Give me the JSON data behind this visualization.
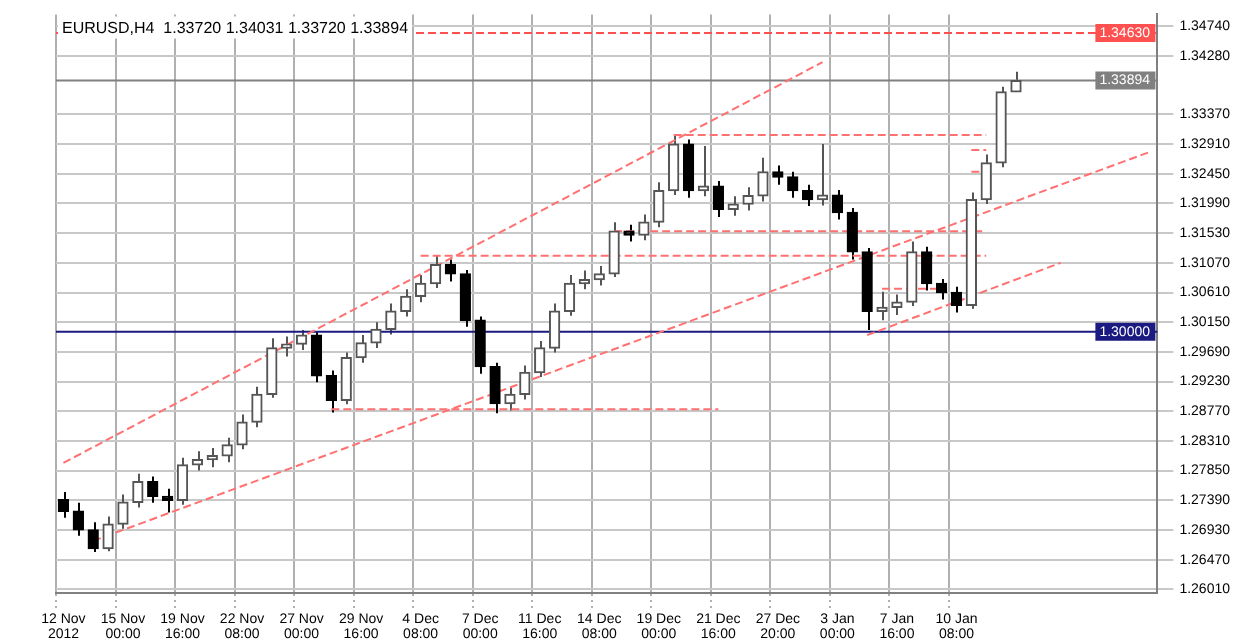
{
  "chart_data": {
    "type": "candlestick",
    "title": "EURUSD,H4  1.33720 1.34031 1.33720 1.33894",
    "colors": [
      "#000000",
      "#000000",
      "#000000",
      "#555555",
      "#555555",
      "#555555",
      "#000000",
      "#000000",
      "#555555",
      "#555555",
      "#555555",
      "#555555",
      "#555555",
      "#555555",
      "#555555",
      "#555555",
      "#555555",
      "#000000",
      "#000000",
      "#555555",
      "#555555",
      "#555555",
      "#555555",
      "#555555",
      "#555555",
      "#555555",
      "#000000",
      "#000000",
      "#000000",
      "#000000",
      "#555555",
      "#555555",
      "#555555",
      "#555555",
      "#555555",
      "#555555",
      "#555555",
      "#555555",
      "#000000",
      "#555555",
      "#555555",
      "#555555",
      "#000000",
      "#555555",
      "#000000",
      "#555555",
      "#555555",
      "#555555",
      "#000000",
      "#000000",
      "#000000",
      "#555555",
      "#000000",
      "#000000",
      "#000000",
      "#555555",
      "#555555",
      "#555555",
      "#000000",
      "#000000",
      "#000000",
      "#555555",
      "#555555",
      "#555555",
      "#555555",
      null,
      null,
      null,
      null,
      null,
      null,
      null,
      null,
      null
    ],
    "categories": [
      "12 Nov 2012",
      null,
      null,
      null,
      "15 Nov 00:00",
      null,
      null,
      null,
      "19 Nov 16:00",
      null,
      null,
      null,
      "22 Nov 08:00",
      null,
      null,
      null,
      "27 Nov 00:00",
      null,
      null,
      null,
      "29 Nov 16:00",
      null,
      null,
      null,
      "4 Dec 08:00",
      null,
      null,
      null,
      "7 Dec 00:00",
      null,
      null,
      null,
      "11 Dec 16:00",
      null,
      null,
      null,
      "14 Dec 08:00",
      null,
      null,
      null,
      "19 Dec 00:00",
      null,
      null,
      null,
      "21 Dec 16:00",
      null,
      null,
      null,
      "27 Dec 20:00",
      null,
      null,
      null,
      "3 Jan 00:00",
      null,
      null,
      null,
      "7 Jan 16:00",
      null,
      null,
      null,
      "10 Jan 08:00",
      null,
      null,
      null,
      null,
      null,
      null,
      null,
      null,
      null,
      null,
      null,
      null,
      null
    ],
    "ohlc": [
      [
        1.274,
        1.2752,
        1.2712,
        1.2722
      ],
      [
        1.2722,
        1.2735,
        1.2684,
        1.2693
      ],
      [
        1.2693,
        1.2705,
        1.2659,
        1.2664
      ],
      [
        1.2664,
        1.2714,
        1.266,
        1.2702
      ],
      [
        1.2702,
        1.2748,
        1.2695,
        1.2736
      ],
      [
        1.2736,
        1.278,
        1.2728,
        1.2768
      ],
      [
        1.2768,
        1.2776,
        1.2735,
        1.2745
      ],
      [
        1.2745,
        1.2757,
        1.272,
        1.2739
      ],
      [
        1.2739,
        1.2805,
        1.2732,
        1.2794
      ],
      [
        1.2794,
        1.2815,
        1.2785,
        1.2802
      ],
      [
        1.2802,
        1.282,
        1.279,
        1.2808
      ],
      [
        1.2808,
        1.2836,
        1.2798,
        1.2825
      ],
      [
        1.2825,
        1.2872,
        1.2818,
        1.286
      ],
      [
        1.286,
        1.2915,
        1.2852,
        1.2903
      ],
      [
        1.2903,
        1.299,
        1.2898,
        1.2975
      ],
      [
        1.2975,
        1.2993,
        1.2962,
        1.2981
      ],
      [
        1.2981,
        1.3003,
        1.2972,
        1.2995
      ],
      [
        1.2995,
        1.3,
        1.2922,
        1.2932
      ],
      [
        1.2932,
        1.294,
        1.2875,
        1.2894
      ],
      [
        1.2894,
        1.2968,
        1.2888,
        1.296
      ],
      [
        1.296,
        1.2995,
        1.2952,
        1.2983
      ],
      [
        1.2983,
        1.3015,
        1.2975,
        1.3004
      ],
      [
        1.3004,
        1.3044,
        1.2996,
        1.3032
      ],
      [
        1.3032,
        1.3066,
        1.3024,
        1.3055
      ],
      [
        1.3055,
        1.3088,
        1.3046,
        1.3075
      ],
      [
        1.3075,
        1.3118,
        1.3068,
        1.3104
      ],
      [
        1.3104,
        1.3112,
        1.3078,
        1.309
      ],
      [
        1.309,
        1.3096,
        1.3008,
        1.3018
      ],
      [
        1.3018,
        1.3024,
        1.2935,
        1.2946
      ],
      [
        1.2946,
        1.2952,
        1.2874,
        1.2889
      ],
      [
        1.2889,
        1.2915,
        1.2878,
        1.2903
      ],
      [
        1.2903,
        1.2948,
        1.2895,
        1.2937
      ],
      [
        1.2937,
        1.2986,
        1.293,
        1.2975
      ],
      [
        1.2975,
        1.3044,
        1.2968,
        1.3032
      ],
      [
        1.3032,
        1.3088,
        1.3025,
        1.3075
      ],
      [
        1.3075,
        1.3095,
        1.3066,
        1.3081
      ],
      [
        1.3081,
        1.3102,
        1.3072,
        1.309
      ],
      [
        1.309,
        1.317,
        1.3085,
        1.3156
      ],
      [
        1.3156,
        1.3166,
        1.314,
        1.315
      ],
      [
        1.315,
        1.3182,
        1.3142,
        1.317
      ],
      [
        1.317,
        1.3232,
        1.3162,
        1.3219
      ],
      [
        1.3219,
        1.3305,
        1.3212,
        1.3291
      ],
      [
        1.3291,
        1.3298,
        1.3208,
        1.3219
      ],
      [
        1.3219,
        1.3288,
        1.321,
        1.3226
      ],
      [
        1.3226,
        1.3234,
        1.3178,
        1.319
      ],
      [
        1.319,
        1.321,
        1.318,
        1.3198
      ],
      [
        1.3198,
        1.3224,
        1.3188,
        1.3211
      ],
      [
        1.3211,
        1.327,
        1.3202,
        1.3248
      ],
      [
        1.3248,
        1.3258,
        1.3228,
        1.324
      ],
      [
        1.324,
        1.3248,
        1.3208,
        1.3219
      ],
      [
        1.3219,
        1.3228,
        1.3195,
        1.3205
      ],
      [
        1.3205,
        1.3291,
        1.3196,
        1.3212
      ],
      [
        1.3212,
        1.322,
        1.3174,
        1.3185
      ],
      [
        1.3185,
        1.3192,
        1.3112,
        1.3124
      ],
      [
        1.3124,
        1.313,
        1.3003,
        1.3032
      ],
      [
        1.3032,
        1.3062,
        1.3018,
        1.3038
      ],
      [
        1.3038,
        1.3058,
        1.3026,
        1.3046
      ],
      [
        1.3046,
        1.314,
        1.304,
        1.3124
      ],
      [
        1.3124,
        1.3132,
        1.3064,
        1.3075
      ],
      [
        1.3075,
        1.3082,
        1.305,
        1.3061
      ],
      [
        1.3061,
        1.307,
        1.303,
        1.3041
      ],
      [
        1.3041,
        1.3216,
        1.3036,
        1.3205
      ],
      [
        1.3205,
        1.3275,
        1.3198,
        1.3262
      ],
      [
        1.3262,
        1.338,
        1.3255,
        1.3372
      ],
      [
        1.3372,
        1.34031,
        1.3372,
        1.33894
      ],
      null,
      null,
      null,
      null,
      null,
      null,
      null,
      null,
      null
    ],
    "series": [
      {
        "type": "line",
        "color": "#ff7070",
        "line_style": "dashed",
        "values": [
          1.2797,
          null,
          null,
          null,
          null,
          null,
          null,
          null,
          null,
          null,
          null,
          null,
          null,
          null,
          null,
          null,
          null,
          null,
          null,
          null,
          null,
          null,
          null,
          null,
          null,
          null,
          null,
          null,
          null,
          null,
          null,
          null,
          null,
          null,
          null,
          null,
          null,
          null,
          null,
          null,
          null,
          null,
          null,
          null,
          null,
          null,
          null,
          null,
          null,
          null,
          null,
          1.3418,
          null,
          null,
          null,
          null,
          null,
          null,
          null,
          null,
          null,
          null,
          null,
          null,
          null,
          null,
          null,
          null,
          null,
          null,
          null,
          null,
          null,
          null
        ]
      },
      {
        "type": "line",
        "color": "#ff7070",
        "line_style": "dashed",
        "values": [
          null,
          null,
          1.2676,
          null,
          null,
          null,
          null,
          null,
          null,
          null,
          null,
          null,
          null,
          null,
          null,
          null,
          null,
          null,
          null,
          null,
          null,
          null,
          null,
          null,
          null,
          null,
          null,
          null,
          null,
          null,
          null,
          null,
          null,
          null,
          null,
          null,
          null,
          null,
          null,
          null,
          null,
          null,
          null,
          null,
          null,
          null,
          null,
          null,
          null,
          null,
          null,
          null,
          null,
          null,
          null,
          null,
          null,
          null,
          null,
          null,
          null,
          null,
          null,
          null,
          null,
          null,
          null,
          null,
          null,
          null,
          null,
          null,
          null,
          1.3279
        ]
      },
      {
        "type": "line",
        "color": "#ff7070",
        "line_style": "dashed",
        "values": [
          null,
          null,
          null,
          null,
          null,
          null,
          null,
          null,
          null,
          null,
          null,
          null,
          null,
          null,
          null,
          null,
          null,
          null,
          null,
          null,
          null,
          null,
          null,
          null,
          null,
          null,
          null,
          null,
          null,
          null,
          null,
          null,
          null,
          null,
          null,
          null,
          null,
          null,
          null,
          null,
          null,
          null,
          null,
          null,
          null,
          null,
          null,
          null,
          null,
          null,
          null,
          null,
          null,
          null,
          1.2995,
          null,
          null,
          null,
          null,
          null,
          null,
          null,
          null,
          null,
          null,
          null,
          null,
          1.3107,
          null,
          null,
          null,
          null,
          null,
          null
        ]
      },
      {
        "type": "line",
        "color": "#ff7070",
        "line_style": "dashed",
        "values": [
          null,
          null,
          null,
          null,
          null,
          null,
          null,
          null,
          null,
          null,
          null,
          null,
          null,
          null,
          null,
          null,
          null,
          null,
          null,
          null,
          null,
          null,
          null,
          null,
          null,
          null,
          null,
          null,
          null,
          null,
          null,
          null,
          null,
          null,
          null,
          null,
          null,
          null,
          null,
          null,
          null,
          1.3305,
          null,
          null,
          null,
          null,
          null,
          null,
          null,
          null,
          null,
          null,
          null,
          null,
          null,
          null,
          null,
          null,
          null,
          null,
          null,
          null,
          1.3305,
          null,
          null,
          null,
          null,
          null,
          null,
          null,
          null,
          null,
          null,
          null
        ]
      },
      {
        "type": "line",
        "color": "#ff7070",
        "line_style": "dashed",
        "values": [
          null,
          null,
          null,
          null,
          null,
          null,
          null,
          null,
          null,
          null,
          null,
          null,
          null,
          null,
          null,
          null,
          null,
          null,
          null,
          null,
          null,
          null,
          null,
          null,
          null,
          null,
          null,
          null,
          null,
          null,
          null,
          null,
          null,
          null,
          null,
          null,
          null,
          1.3156,
          null,
          null,
          null,
          null,
          null,
          null,
          null,
          null,
          null,
          null,
          null,
          null,
          null,
          null,
          null,
          null,
          null,
          null,
          null,
          null,
          null,
          null,
          null,
          null,
          1.3156,
          null,
          null,
          null,
          null,
          null,
          null,
          null,
          null,
          null,
          null,
          null
        ]
      },
      {
        "type": "line",
        "color": "#ff7070",
        "line_style": "dashed",
        "values": [
          null,
          null,
          null,
          null,
          null,
          null,
          null,
          null,
          null,
          null,
          null,
          null,
          null,
          null,
          null,
          null,
          null,
          null,
          null,
          null,
          null,
          null,
          null,
          null,
          1.3118,
          null,
          null,
          null,
          null,
          null,
          null,
          null,
          null,
          null,
          null,
          null,
          null,
          null,
          null,
          null,
          null,
          null,
          null,
          null,
          null,
          null,
          null,
          null,
          null,
          null,
          null,
          null,
          null,
          null,
          null,
          null,
          null,
          null,
          null,
          null,
          null,
          null,
          1.3118,
          null,
          null,
          null,
          null,
          null,
          null,
          null,
          null,
          null,
          null,
          null
        ]
      },
      {
        "type": "line",
        "color": "#ff7070",
        "line_style": "dashed",
        "values": [
          null,
          null,
          null,
          null,
          null,
          null,
          null,
          null,
          null,
          null,
          null,
          null,
          null,
          null,
          null,
          null,
          null,
          null,
          1.288,
          null,
          null,
          null,
          null,
          null,
          null,
          null,
          null,
          null,
          null,
          null,
          null,
          null,
          null,
          null,
          null,
          null,
          null,
          null,
          null,
          null,
          null,
          null,
          null,
          null,
          1.288,
          null,
          null,
          null,
          null,
          null,
          null,
          null,
          null,
          null,
          null,
          null,
          null,
          null,
          null,
          null,
          null,
          null,
          null,
          null,
          null,
          null,
          null,
          null,
          null,
          null,
          null,
          null,
          null,
          null
        ]
      },
      {
        "type": "line",
        "color": "#ff7070",
        "line_style": "dashed",
        "values": [
          null,
          null,
          null,
          null,
          null,
          null,
          null,
          null,
          null,
          null,
          null,
          null,
          null,
          null,
          null,
          null,
          null,
          null,
          null,
          null,
          null,
          null,
          null,
          null,
          null,
          null,
          null,
          null,
          null,
          null,
          null,
          null,
          null,
          null,
          null,
          null,
          null,
          null,
          null,
          null,
          null,
          null,
          null,
          null,
          null,
          null,
          null,
          null,
          null,
          null,
          null,
          null,
          null,
          null,
          null,
          1.3067,
          null,
          null,
          null,
          1.3067,
          null,
          null,
          null,
          null,
          null,
          null,
          null,
          null,
          null,
          null,
          null,
          null,
          null,
          null
        ]
      },
      {
        "type": "line",
        "color": "#ff7070",
        "line_style": "dashed",
        "values": [
          null,
          null,
          null,
          null,
          null,
          null,
          null,
          null,
          null,
          null,
          null,
          null,
          null,
          null,
          null,
          null,
          null,
          null,
          null,
          null,
          null,
          null,
          null,
          null,
          null,
          null,
          null,
          null,
          null,
          null,
          null,
          null,
          null,
          null,
          null,
          null,
          null,
          null,
          null,
          null,
          null,
          null,
          null,
          null,
          null,
          null,
          null,
          null,
          null,
          null,
          null,
          null,
          null,
          null,
          null,
          null,
          null,
          null,
          null,
          null,
          null,
          1.3282,
          1.3282,
          null,
          null,
          null,
          null,
          null,
          null,
          null,
          null,
          null,
          null,
          null
        ]
      },
      {
        "type": "line",
        "color": "#ff7070",
        "line_style": "dashed",
        "values": [
          null,
          null,
          null,
          null,
          null,
          null,
          null,
          null,
          null,
          null,
          null,
          null,
          null,
          null,
          null,
          null,
          null,
          null,
          null,
          null,
          null,
          null,
          null,
          null,
          null,
          null,
          null,
          null,
          null,
          null,
          null,
          null,
          null,
          null,
          null,
          null,
          null,
          null,
          null,
          null,
          null,
          null,
          null,
          null,
          null,
          null,
          null,
          null,
          null,
          null,
          null,
          null,
          null,
          null,
          null,
          null,
          null,
          null,
          null,
          null,
          null,
          1.3248,
          1.3248,
          null,
          null,
          null,
          null,
          null,
          null,
          null,
          null,
          null,
          null,
          null
        ]
      }
    ],
    "ylim": [
      1.2595,
      1.3492
    ],
    "yticks": [
      {
        "value": 1.2601,
        "label": "1.26010"
      },
      {
        "value": 1.2647,
        "label": "1.26470"
      },
      {
        "value": 1.2693,
        "label": "1.26930"
      },
      {
        "value": 1.2739,
        "label": "1.27390"
      },
      {
        "value": 1.2785,
        "label": "1.27850"
      },
      {
        "value": 1.2831,
        "label": "1.28310"
      },
      {
        "value": 1.2877,
        "label": "1.28770"
      },
      {
        "value": 1.2923,
        "label": "1.29230"
      },
      {
        "value": 1.2969,
        "label": "1.29690"
      },
      {
        "value": 1.3015,
        "label": "1.30150"
      },
      {
        "value": 1.3061,
        "label": "1.30610"
      },
      {
        "value": 1.3107,
        "label": "1.31070"
      },
      {
        "value": 1.3153,
        "label": "1.31530"
      },
      {
        "value": 1.3199,
        "label": "1.31990"
      },
      {
        "value": 1.3245,
        "label": "1.32450"
      },
      {
        "value": 1.3291,
        "label": "1.32910"
      },
      {
        "value": 1.3337,
        "label": "1.33370"
      },
      {
        "value": 1.3428,
        "label": "1.34280"
      },
      {
        "value": 1.3474,
        "label": "1.34740"
      }
    ],
    "grid": true,
    "ref_lines": [
      {
        "axis": "y",
        "value": 1.3,
        "label": "1.30000",
        "color": "#1a1a80",
        "line_style": "solid"
      },
      {
        "axis": "y",
        "value": 1.3463,
        "label": "1.34630",
        "color": "#ff5050",
        "line_style": "dashed"
      },
      {
        "axis": "y",
        "value": 1.33894,
        "label": "1.33894",
        "color": "#808080",
        "line_style": "solid"
      }
    ]
  }
}
